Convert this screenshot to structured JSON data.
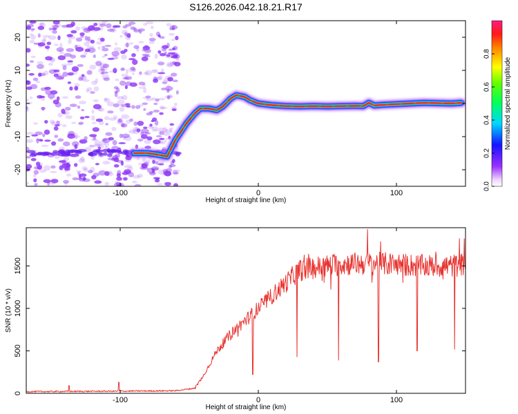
{
  "figure": {
    "title": "S126.2026.042.18.21.R17"
  },
  "colors": {
    "snr_line": "#e8322e",
    "ridge_high": "#e53a2e",
    "ridge_mid": "#2fd45a",
    "ridge_low": "#1a2aff",
    "noise": "#8c33f5",
    "axis": "#000000"
  },
  "chart_data": [
    {
      "type": "heatmap",
      "title": "S126.2026.042.18.21.R17",
      "xlabel": "Height of straight line (km)",
      "ylabel": "Frequency (Hz)",
      "xlim": [
        -168,
        150
      ],
      "ylim": [
        -25,
        25
      ],
      "xticks": [
        -100,
        0,
        100
      ],
      "yticks": [
        -20,
        -10,
        0,
        10,
        20
      ],
      "noise_region_x": [
        -168,
        -58
      ],
      "colorbar": {
        "label": "Normalized spectral amplitude",
        "range": [
          0,
          1
        ],
        "ticks": [
          0.0,
          0.2,
          0.4,
          0.6,
          0.8
        ],
        "tick_labels": [
          "0.0",
          "0.2",
          "0.4",
          "0.6",
          "0.8"
        ]
      },
      "ridge": {
        "x": [
          -90,
          -80,
          -72,
          -66,
          -60,
          -52,
          -46,
          -42,
          -36,
          -30,
          -26,
          -20,
          -16,
          -10,
          -6,
          0,
          10,
          20,
          30,
          40,
          50,
          60,
          70,
          76,
          80,
          84,
          90,
          100,
          110,
          120,
          130,
          140,
          147
        ],
        "y": [
          -15,
          -15,
          -15.5,
          -16,
          -11,
          -6,
          -3,
          -1.5,
          -1.5,
          -2,
          -1,
          1.5,
          2.5,
          2,
          1,
          0,
          -0.5,
          -0.8,
          -0.9,
          -0.8,
          -0.9,
          -0.8,
          -0.7,
          -0.8,
          0.2,
          -0.6,
          -0.4,
          -0.2,
          0,
          0.2,
          0.1,
          0,
          0.2
        ]
      }
    },
    {
      "type": "line",
      "xlabel": "Height of straight line (km)",
      "ylabel": "SNR (10 * v/v)",
      "xlim": [
        -168,
        150
      ],
      "ylim": [
        0,
        1950
      ],
      "xticks": [
        -100,
        0,
        100
      ],
      "yticks": [
        0,
        500,
        1000,
        1500
      ],
      "series": [
        {
          "envelope": {
            "x": [
              -168,
              -100,
              -60,
              -46,
              -40,
              -30,
              -20,
              -10,
              0,
              10,
              20,
              25,
              30,
              40,
              50,
              60,
              80,
              100,
              120,
              140,
              150
            ],
            "y": [
              20,
              25,
              30,
              60,
              200,
              500,
              700,
              850,
              1000,
              1150,
              1300,
              1380,
              1450,
              1480,
              1500,
              1520,
              1530,
              1520,
              1500,
              1500,
              1520
            ]
          },
          "dips": [
            {
              "x": -4,
              "y": 220
            },
            {
              "x": 28,
              "y": 430
            },
            {
              "x": 58,
              "y": 390
            },
            {
              "x": 87,
              "y": 370
            },
            {
              "x": 115,
              "y": 500
            },
            {
              "x": 142,
              "y": 520
            }
          ],
          "spikes": [
            {
              "x": -101,
              "y": 130
            },
            {
              "x": -137,
              "y": 90
            },
            {
              "x": 79,
              "y": 1930
            },
            {
              "x": 149,
              "y": 1820
            }
          ]
        }
      ]
    }
  ]
}
